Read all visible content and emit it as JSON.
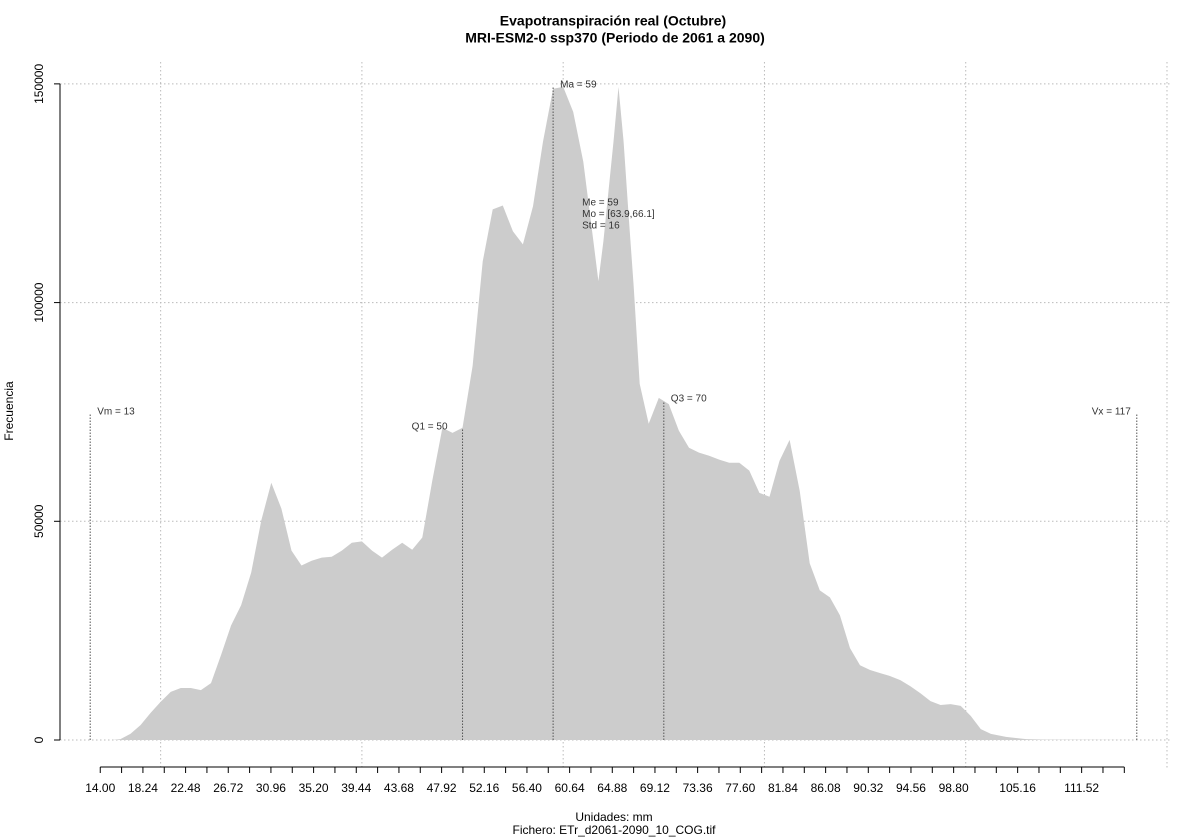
{
  "chart_data": {
    "type": "area",
    "title": "Evapotranspiración real (Octubre)",
    "subtitle": "MRI-ESM2-0 ssp370 (Periodo de 2061 a 2090)",
    "x_label": "Unidades: mm",
    "caption": "Fichero: ETr_d2061-2090_10_COG.tif",
    "y_label": "Frecuencia",
    "color": "#cccccc",
    "grid": true,
    "xlim": [
      10,
      120.3
    ],
    "ylim": [
      -6400,
      155000
    ],
    "xticks": [
      {
        "value": 14,
        "label": "14.00"
      },
      18.24,
      22.48,
      26.72,
      30.96,
      {
        "value": 35.2,
        "label": "35.20"
      },
      39.44,
      43.68,
      47.92,
      52.16,
      {
        "value": 56.4,
        "label": "56.40"
      },
      60.64,
      64.88,
      69.12,
      73.36,
      {
        "value": 77.6,
        "label": "77.60"
      },
      81.84,
      86.08,
      90.32,
      94.56,
      {
        "value": 98.8,
        "label": "98.80"
      },
      105.16,
      111.52
    ],
    "x_minor_ticks": [
      16.12,
      20.36,
      24.6,
      28.84,
      33.08,
      37.32,
      41.56,
      45.8,
      50.04,
      54.28,
      58.52,
      62.76,
      67,
      71.24,
      75.48,
      79.72,
      83.96,
      88.2,
      92.44,
      96.68,
      100.92,
      103.04,
      107.28,
      109.4,
      113.64,
      115.76
    ],
    "x_grid": [
      20,
      40,
      60,
      80,
      100,
      120
    ],
    "yticks": [
      0,
      50000,
      100000,
      150000
    ],
    "x": [
      14,
      15.2,
      16,
      17,
      18,
      19,
      20,
      21,
      22,
      23,
      24,
      25,
      26,
      27,
      28,
      29,
      30,
      31,
      32,
      33,
      34,
      35,
      36,
      37,
      38,
      39,
      40,
      41,
      42,
      43,
      44,
      45,
      46,
      47,
      48,
      49,
      50,
      51,
      52,
      53,
      54,
      55,
      56,
      57,
      58,
      59,
      60,
      61,
      62,
      63,
      63.5,
      64,
      65,
      65.5,
      66,
      66.5,
      67,
      67.6,
      68.5,
      69.5,
      70.5,
      71.5,
      72.5,
      73.5,
      74.5,
      75.5,
      76.5,
      77.5,
      78.5,
      79.5,
      80.5,
      81.5,
      82.5,
      83.5,
      84.5,
      85.5,
      86.5,
      87.5,
      88.5,
      89.5,
      90.5,
      91.5,
      92.5,
      93.5,
      94.5,
      95.5,
      96.5,
      97.5,
      98.5,
      99.5,
      100.5,
      101.5,
      102.5,
      104,
      106,
      108,
      112,
      117
    ],
    "values": [
      0,
      0,
      200,
      1400,
      3400,
      6200,
      8700,
      11000,
      11900,
      11900,
      11400,
      13000,
      19400,
      26200,
      30800,
      38300,
      50200,
      58800,
      52900,
      43300,
      39900,
      41000,
      41700,
      41900,
      43300,
      45100,
      45400,
      43300,
      41700,
      43500,
      45100,
      43500,
      46300,
      59300,
      71400,
      70200,
      71400,
      85500,
      109400,
      121300,
      122200,
      116300,
      113300,
      122000,
      136800,
      148900,
      149300,
      143600,
      132200,
      114000,
      104900,
      114000,
      136800,
      149300,
      136800,
      120000,
      104000,
      81400,
      72300,
      78200,
      76800,
      70700,
      66800,
      65700,
      65000,
      64100,
      63400,
      63400,
      61600,
      56500,
      55600,
      63800,
      68600,
      57000,
      40400,
      34200,
      32600,
      28500,
      21000,
      17100,
      16000,
      15300,
      14600,
      13700,
      12300,
      10700,
      8900,
      8000,
      8200,
      7800,
      5500,
      2500,
      1400,
      700,
      200,
      100,
      50,
      0
    ],
    "markers": [
      {
        "label": "Vm = 13",
        "x": 13,
        "y": 74600
      },
      {
        "label": "Q1 = 50",
        "x": 50,
        "y": 71100
      },
      {
        "label": "Ma = 59",
        "x": 59,
        "y": 149300
      },
      {
        "label": "Q3 = 70",
        "x": 70,
        "y": 77500
      },
      {
        "label": "Vx = 117",
        "x": 117,
        "y": 74600
      }
    ],
    "stats": [
      "Me = 59",
      "Mo = [63.9,66.1]",
      "Std = 16"
    ]
  }
}
